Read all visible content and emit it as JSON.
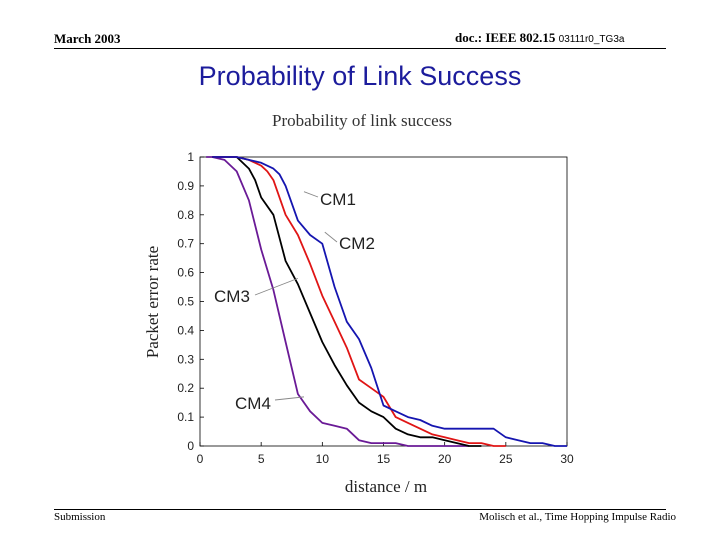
{
  "header": {
    "date": "March 2003",
    "doc_label": "doc.: IEEE 802.15",
    "doc_number": "03111r0_TG3a"
  },
  "slide_title": "Probability of Link Success",
  "footer": {
    "left": "Submission",
    "right": "Molisch et al., Time Hopping Impulse Radio"
  },
  "colors": {
    "title": "#1c1c9c",
    "CM1": "#1515b0",
    "CM2": "#e01515",
    "CM3": "#000000",
    "CM4": "#6a1a96"
  },
  "chart_data": {
    "type": "line",
    "title": "Probability of link success",
    "xlabel": "distance / m",
    "ylabel": "Packet error rate",
    "xlim": [
      0,
      30
    ],
    "ylim": [
      0,
      1
    ],
    "xticks": [
      "0",
      "5",
      "10",
      "15",
      "20",
      "25",
      "30"
    ],
    "yticks": [
      "0",
      "0.1",
      "0.2",
      "0.3",
      "0.4",
      "0.5",
      "0.6",
      "0.7",
      "0.8",
      "0.9",
      "1"
    ],
    "series": [
      {
        "name": "CM1",
        "x": [
          1,
          2,
          3,
          4,
          5,
          6,
          6.5,
          7,
          8,
          9,
          10,
          11,
          12,
          13,
          14,
          15,
          16,
          17,
          18,
          19,
          20,
          21,
          22,
          23,
          24,
          25,
          26,
          27,
          28,
          29,
          30
        ],
        "y": [
          1,
          1,
          1,
          0.99,
          0.98,
          0.96,
          0.94,
          0.9,
          0.78,
          0.73,
          0.7,
          0.55,
          0.43,
          0.37,
          0.27,
          0.14,
          0.12,
          0.1,
          0.09,
          0.07,
          0.06,
          0.06,
          0.06,
          0.06,
          0.06,
          0.03,
          0.02,
          0.01,
          0.01,
          0.0,
          0.0
        ]
      },
      {
        "name": "CM2",
        "x": [
          1,
          2,
          3,
          4,
          5,
          5.5,
          6,
          7,
          8,
          9,
          10,
          11,
          12,
          13,
          14,
          15,
          16,
          17,
          18,
          19,
          20,
          21,
          22,
          23,
          24,
          25
        ],
        "y": [
          1,
          1,
          1,
          0.99,
          0.97,
          0.95,
          0.92,
          0.8,
          0.73,
          0.63,
          0.52,
          0.43,
          0.34,
          0.23,
          0.2,
          0.17,
          0.1,
          0.08,
          0.06,
          0.04,
          0.03,
          0.02,
          0.01,
          0.01,
          0.0,
          0.0
        ]
      },
      {
        "name": "CM3",
        "x": [
          1,
          2,
          3,
          4,
          4.5,
          5,
          6,
          7,
          8,
          9,
          10,
          11,
          12,
          13,
          14,
          15,
          16,
          17,
          18,
          19,
          20,
          21,
          22,
          23
        ],
        "y": [
          1,
          1,
          1,
          0.96,
          0.92,
          0.86,
          0.8,
          0.64,
          0.56,
          0.46,
          0.36,
          0.28,
          0.21,
          0.15,
          0.12,
          0.1,
          0.06,
          0.04,
          0.03,
          0.03,
          0.02,
          0.01,
          0.0,
          0.0
        ]
      },
      {
        "name": "CM4",
        "x": [
          0.5,
          1,
          2,
          3,
          4,
          5,
          6,
          7,
          8,
          9,
          10,
          11,
          12,
          13,
          14,
          15,
          16,
          17,
          18,
          19,
          20,
          21,
          22
        ],
        "y": [
          1,
          1,
          0.99,
          0.95,
          0.85,
          0.68,
          0.54,
          0.36,
          0.18,
          0.12,
          0.08,
          0.07,
          0.06,
          0.02,
          0.01,
          0.01,
          0.01,
          0.0,
          0.0,
          0.0,
          0.0,
          0.0,
          0.0
        ]
      }
    ],
    "annotations": [
      {
        "label": "CM1",
        "series": "CM1",
        "x": 8.5,
        "y": 0.88
      },
      {
        "label": "CM2",
        "series": "CM2",
        "x": 10.2,
        "y": 0.74
      },
      {
        "label": "CM3",
        "series": "CM3",
        "x": 8.0,
        "y": 0.58
      },
      {
        "label": "CM4",
        "series": "CM4",
        "x": 8.5,
        "y": 0.17
      }
    ]
  }
}
